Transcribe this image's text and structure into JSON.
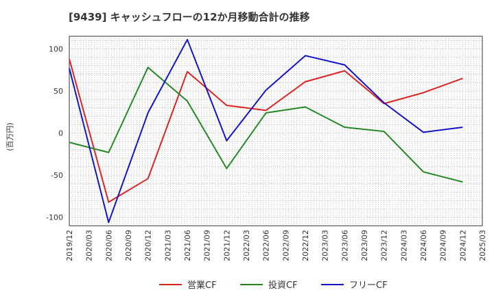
{
  "chart_data": {
    "type": "line",
    "title": "[9439]  キャッシュフローの12か月移動合計の推移",
    "ylabel": "(百万円)",
    "xlabel": "",
    "ylim": [
      -110,
      115
    ],
    "yticks": [
      100,
      50,
      0,
      -50,
      -100
    ],
    "ytick_labels": [
      "100",
      "50",
      "0",
      "-50",
      "-100"
    ],
    "categories": [
      "2019/12",
      "2020/03",
      "2020/06",
      "2020/09",
      "2020/12",
      "2021/03",
      "2021/06",
      "2021/09",
      "2021/12",
      "2022/03",
      "2022/06",
      "2022/09",
      "2022/12",
      "2023/03",
      "2023/06",
      "2023/09",
      "2023/12",
      "2024/03",
      "2024/06",
      "2024/09",
      "2024/12",
      "2025/03"
    ],
    "grid": true,
    "legend_position": "bottom",
    "series": [
      {
        "name": "営業CF",
        "color": "#dd2222",
        "x": [
          "2019/12",
          "2020/06",
          "2020/12",
          "2021/06",
          "2021/12",
          "2022/06",
          "2022/12",
          "2023/06",
          "2023/12",
          "2024/06",
          "2024/12"
        ],
        "values": [
          88,
          -82,
          -54,
          73,
          33,
          27,
          61,
          74,
          35,
          48,
          65
        ]
      },
      {
        "name": "投資CF",
        "color": "#228822",
        "x": [
          "2019/12",
          "2020/06",
          "2020/12",
          "2021/06",
          "2021/12",
          "2022/06",
          "2022/12",
          "2023/06",
          "2023/12",
          "2024/06",
          "2024/12"
        ],
        "values": [
          -11,
          -23,
          78,
          38,
          -42,
          24,
          31,
          7,
          2,
          -46,
          -58
        ]
      },
      {
        "name": "フリーCF",
        "color": "#1111cc",
        "x": [
          "2019/12",
          "2020/06",
          "2020/12",
          "2021/06",
          "2021/12",
          "2022/06",
          "2022/12",
          "2023/06",
          "2023/12",
          "2024/06",
          "2024/12"
        ],
        "values": [
          77,
          -106,
          24,
          111,
          -9,
          51,
          92,
          81,
          36,
          1,
          7
        ]
      }
    ]
  }
}
